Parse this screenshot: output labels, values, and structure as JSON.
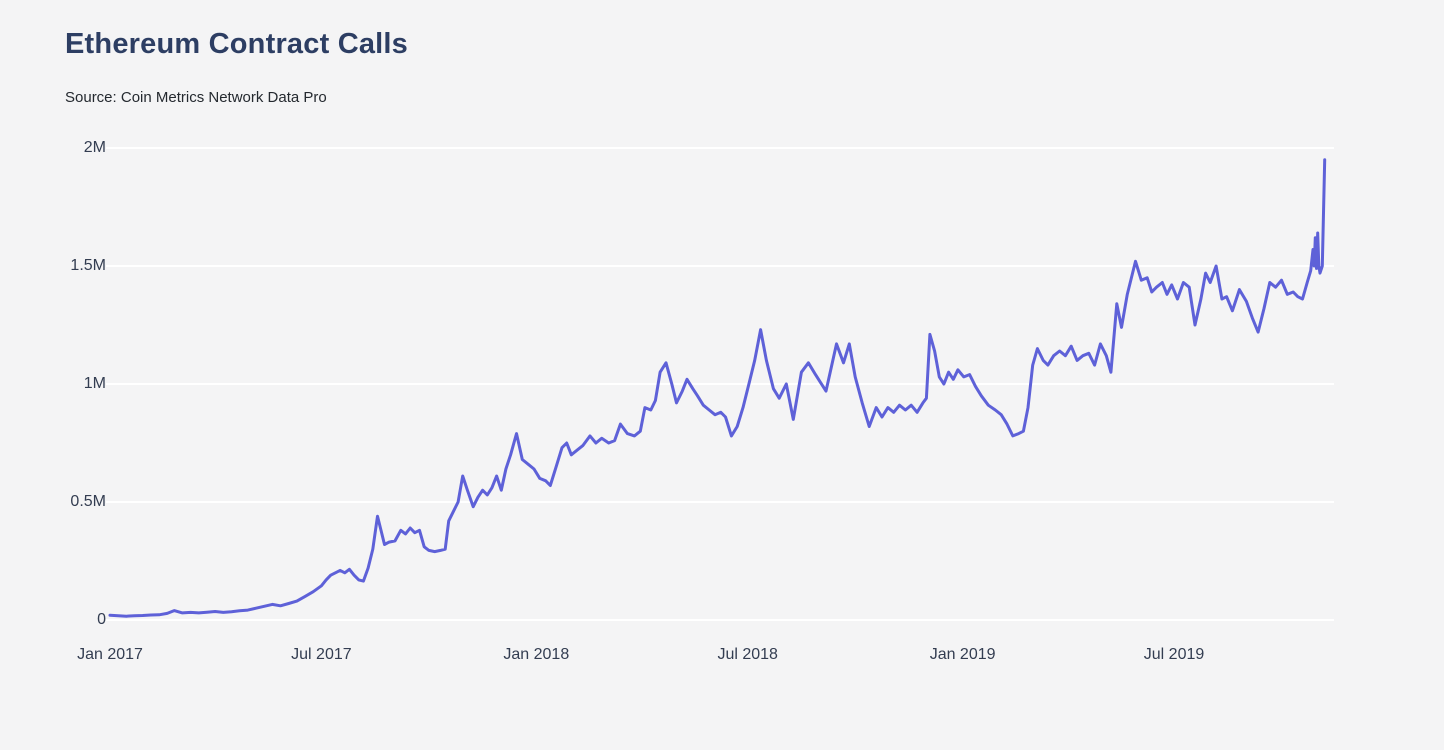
{
  "page": {
    "background": "#f4f4f5"
  },
  "header": {
    "title": "Ethereum Contract Calls",
    "source": "Source: Coin Metrics Network Data Pro"
  },
  "chart_data": {
    "type": "line",
    "title": "Ethereum Contract Calls",
    "source": "Source: Coin Metrics Network Data Pro",
    "series_name": "Ethereum contract calls",
    "unit": "calls, values in millions",
    "line_color": "#5e61d8",
    "grid_color": "#ffffff",
    "background_color": "#f4f4f5",
    "grid": true,
    "legend": false,
    "ylim": [
      0,
      2
    ],
    "x_range": [
      "2017-01-01",
      "2019-11-07"
    ],
    "y_ticks": [
      {
        "label": "0",
        "value": 0
      },
      {
        "label": "0.5M",
        "value": 0.5
      },
      {
        "label": "1M",
        "value": 1
      },
      {
        "label": "1.5M",
        "value": 1.5
      },
      {
        "label": "2M",
        "value": 2
      }
    ],
    "x_ticks": [
      {
        "label": "Jan 2017",
        "date": "2017-01-01"
      },
      {
        "label": "Jul 2017",
        "date": "2017-07-01"
      },
      {
        "label": "Jan 2018",
        "date": "2018-01-01"
      },
      {
        "label": "Jul 2018",
        "date": "2018-07-01"
      },
      {
        "label": "Jan 2019",
        "date": "2019-01-01"
      },
      {
        "label": "Jul 2019",
        "date": "2019-07-01"
      }
    ],
    "points": [
      [
        "2017-01-01",
        0.02
      ],
      [
        "2017-01-08",
        0.018
      ],
      [
        "2017-01-15",
        0.016
      ],
      [
        "2017-01-22",
        0.018
      ],
      [
        "2017-01-29",
        0.019
      ],
      [
        "2017-02-05",
        0.021
      ],
      [
        "2017-02-12",
        0.022
      ],
      [
        "2017-02-19",
        0.028
      ],
      [
        "2017-02-25",
        0.04
      ],
      [
        "2017-03-04",
        0.03
      ],
      [
        "2017-03-11",
        0.032
      ],
      [
        "2017-03-18",
        0.03
      ],
      [
        "2017-03-25",
        0.033
      ],
      [
        "2017-04-01",
        0.036
      ],
      [
        "2017-04-08",
        0.032
      ],
      [
        "2017-04-15",
        0.035
      ],
      [
        "2017-04-22",
        0.039
      ],
      [
        "2017-04-29",
        0.042
      ],
      [
        "2017-05-06",
        0.05
      ],
      [
        "2017-05-13",
        0.058
      ],
      [
        "2017-05-20",
        0.066
      ],
      [
        "2017-05-27",
        0.06
      ],
      [
        "2017-06-03",
        0.07
      ],
      [
        "2017-06-10",
        0.08
      ],
      [
        "2017-06-17",
        0.1
      ],
      [
        "2017-06-24",
        0.12
      ],
      [
        "2017-07-01",
        0.145
      ],
      [
        "2017-07-05",
        0.17
      ],
      [
        "2017-07-09",
        0.19
      ],
      [
        "2017-07-13",
        0.2
      ],
      [
        "2017-07-17",
        0.21
      ],
      [
        "2017-07-21",
        0.2
      ],
      [
        "2017-07-25",
        0.215
      ],
      [
        "2017-07-29",
        0.19
      ],
      [
        "2017-08-02",
        0.17
      ],
      [
        "2017-08-06",
        0.165
      ],
      [
        "2017-08-10",
        0.22
      ],
      [
        "2017-08-14",
        0.3
      ],
      [
        "2017-08-18",
        0.44
      ],
      [
        "2017-08-21",
        0.38
      ],
      [
        "2017-08-24",
        0.32
      ],
      [
        "2017-08-28",
        0.33
      ],
      [
        "2017-09-02",
        0.335
      ],
      [
        "2017-09-07",
        0.38
      ],
      [
        "2017-09-11",
        0.365
      ],
      [
        "2017-09-15",
        0.39
      ],
      [
        "2017-09-19",
        0.37
      ],
      [
        "2017-09-23",
        0.38
      ],
      [
        "2017-09-27",
        0.31
      ],
      [
        "2017-10-01",
        0.295
      ],
      [
        "2017-10-06",
        0.29
      ],
      [
        "2017-10-11",
        0.295
      ],
      [
        "2017-10-15",
        0.3
      ],
      [
        "2017-10-18",
        0.42
      ],
      [
        "2017-10-22",
        0.46
      ],
      [
        "2017-10-26",
        0.5
      ],
      [
        "2017-10-30",
        0.61
      ],
      [
        "2017-11-03",
        0.55
      ],
      [
        "2017-11-08",
        0.48
      ],
      [
        "2017-11-12",
        0.52
      ],
      [
        "2017-11-16",
        0.55
      ],
      [
        "2017-11-20",
        0.53
      ],
      [
        "2017-11-24",
        0.56
      ],
      [
        "2017-11-28",
        0.61
      ],
      [
        "2017-12-02",
        0.55
      ],
      [
        "2017-12-06",
        0.64
      ],
      [
        "2017-12-10",
        0.7
      ],
      [
        "2017-12-15",
        0.79
      ],
      [
        "2017-12-20",
        0.68
      ],
      [
        "2017-12-25",
        0.66
      ],
      [
        "2017-12-30",
        0.64
      ],
      [
        "2018-01-04",
        0.6
      ],
      [
        "2018-01-09",
        0.59
      ],
      [
        "2018-01-13",
        0.57
      ],
      [
        "2018-01-18",
        0.65
      ],
      [
        "2018-01-23",
        0.73
      ],
      [
        "2018-01-27",
        0.75
      ],
      [
        "2018-01-31",
        0.7
      ],
      [
        "2018-02-05",
        0.72
      ],
      [
        "2018-02-10",
        0.74
      ],
      [
        "2018-02-16",
        0.78
      ],
      [
        "2018-02-21",
        0.75
      ],
      [
        "2018-02-26",
        0.77
      ],
      [
        "2018-03-04",
        0.75
      ],
      [
        "2018-03-09",
        0.76
      ],
      [
        "2018-03-14",
        0.83
      ],
      [
        "2018-03-20",
        0.79
      ],
      [
        "2018-03-26",
        0.78
      ],
      [
        "2018-03-31",
        0.8
      ],
      [
        "2018-04-04",
        0.9
      ],
      [
        "2018-04-09",
        0.89
      ],
      [
        "2018-04-13",
        0.93
      ],
      [
        "2018-04-17",
        1.05
      ],
      [
        "2018-04-22",
        1.09
      ],
      [
        "2018-04-27",
        1.0
      ],
      [
        "2018-05-01",
        0.92
      ],
      [
        "2018-05-06",
        0.97
      ],
      [
        "2018-05-10",
        1.02
      ],
      [
        "2018-05-15",
        0.98
      ],
      [
        "2018-05-19",
        0.95
      ],
      [
        "2018-05-24",
        0.91
      ],
      [
        "2018-05-29",
        0.89
      ],
      [
        "2018-06-03",
        0.87
      ],
      [
        "2018-06-08",
        0.88
      ],
      [
        "2018-06-12",
        0.86
      ],
      [
        "2018-06-17",
        0.78
      ],
      [
        "2018-06-22",
        0.82
      ],
      [
        "2018-06-27",
        0.9
      ],
      [
        "2018-07-02",
        1.0
      ],
      [
        "2018-07-07",
        1.1
      ],
      [
        "2018-07-12",
        1.23
      ],
      [
        "2018-07-17",
        1.1
      ],
      [
        "2018-07-23",
        0.98
      ],
      [
        "2018-07-28",
        0.94
      ],
      [
        "2018-08-03",
        1.0
      ],
      [
        "2018-08-09",
        0.85
      ],
      [
        "2018-08-16",
        1.05
      ],
      [
        "2018-08-22",
        1.09
      ],
      [
        "2018-08-28",
        1.04
      ],
      [
        "2018-09-06",
        0.97
      ],
      [
        "2018-09-15",
        1.17
      ],
      [
        "2018-09-21",
        1.09
      ],
      [
        "2018-09-26",
        1.17
      ],
      [
        "2018-10-01",
        1.03
      ],
      [
        "2018-10-07",
        0.92
      ],
      [
        "2018-10-13",
        0.82
      ],
      [
        "2018-10-19",
        0.9
      ],
      [
        "2018-10-24",
        0.86
      ],
      [
        "2018-10-29",
        0.9
      ],
      [
        "2018-11-03",
        0.88
      ],
      [
        "2018-11-08",
        0.91
      ],
      [
        "2018-11-13",
        0.89
      ],
      [
        "2018-11-18",
        0.91
      ],
      [
        "2018-11-23",
        0.88
      ],
      [
        "2018-11-28",
        0.92
      ],
      [
        "2018-12-01",
        0.94
      ],
      [
        "2018-12-04",
        1.21
      ],
      [
        "2018-12-08",
        1.14
      ],
      [
        "2018-12-12",
        1.03
      ],
      [
        "2018-12-16",
        1.0
      ],
      [
        "2018-12-20",
        1.05
      ],
      [
        "2018-12-24",
        1.02
      ],
      [
        "2018-12-28",
        1.06
      ],
      [
        "2019-01-02",
        1.03
      ],
      [
        "2019-01-07",
        1.04
      ],
      [
        "2019-01-12",
        0.99
      ],
      [
        "2019-01-17",
        0.95
      ],
      [
        "2019-01-23",
        0.91
      ],
      [
        "2019-01-29",
        0.89
      ],
      [
        "2019-02-03",
        0.87
      ],
      [
        "2019-02-08",
        0.83
      ],
      [
        "2019-02-13",
        0.78
      ],
      [
        "2019-02-18",
        0.79
      ],
      [
        "2019-02-22",
        0.8
      ],
      [
        "2019-02-26",
        0.9
      ],
      [
        "2019-03-02",
        1.08
      ],
      [
        "2019-03-06",
        1.15
      ],
      [
        "2019-03-11",
        1.1
      ],
      [
        "2019-03-15",
        1.08
      ],
      [
        "2019-03-20",
        1.12
      ],
      [
        "2019-03-25",
        1.14
      ],
      [
        "2019-03-30",
        1.12
      ],
      [
        "2019-04-04",
        1.16
      ],
      [
        "2019-04-09",
        1.1
      ],
      [
        "2019-04-14",
        1.12
      ],
      [
        "2019-04-19",
        1.13
      ],
      [
        "2019-04-24",
        1.08
      ],
      [
        "2019-04-29",
        1.17
      ],
      [
        "2019-05-04",
        1.12
      ],
      [
        "2019-05-08",
        1.05
      ],
      [
        "2019-05-13",
        1.34
      ],
      [
        "2019-05-17",
        1.24
      ],
      [
        "2019-05-22",
        1.38
      ],
      [
        "2019-05-29",
        1.52
      ],
      [
        "2019-06-03",
        1.44
      ],
      [
        "2019-06-08",
        1.45
      ],
      [
        "2019-06-12",
        1.39
      ],
      [
        "2019-06-16",
        1.41
      ],
      [
        "2019-06-21",
        1.43
      ],
      [
        "2019-06-25",
        1.38
      ],
      [
        "2019-06-29",
        1.42
      ],
      [
        "2019-07-04",
        1.36
      ],
      [
        "2019-07-09",
        1.43
      ],
      [
        "2019-07-14",
        1.41
      ],
      [
        "2019-07-19",
        1.25
      ],
      [
        "2019-07-24",
        1.36
      ],
      [
        "2019-07-28",
        1.47
      ],
      [
        "2019-08-01",
        1.43
      ],
      [
        "2019-08-06",
        1.5
      ],
      [
        "2019-08-11",
        1.36
      ],
      [
        "2019-08-15",
        1.37
      ],
      [
        "2019-08-20",
        1.31
      ],
      [
        "2019-08-26",
        1.4
      ],
      [
        "2019-09-01",
        1.35
      ],
      [
        "2019-09-06",
        1.28
      ],
      [
        "2019-09-11",
        1.22
      ],
      [
        "2019-09-16",
        1.32
      ],
      [
        "2019-09-21",
        1.43
      ],
      [
        "2019-09-26",
        1.41
      ],
      [
        "2019-10-01",
        1.44
      ],
      [
        "2019-10-06",
        1.38
      ],
      [
        "2019-10-11",
        1.39
      ],
      [
        "2019-10-15",
        1.37
      ],
      [
        "2019-10-19",
        1.36
      ],
      [
        "2019-10-23",
        1.43
      ],
      [
        "2019-10-26",
        1.48
      ],
      [
        "2019-10-28",
        1.57
      ],
      [
        "2019-10-29",
        1.5
      ],
      [
        "2019-10-30",
        1.62
      ],
      [
        "2019-10-31",
        1.49
      ],
      [
        "2019-11-01",
        1.64
      ],
      [
        "2019-11-02",
        1.5
      ],
      [
        "2019-11-03",
        1.47
      ],
      [
        "2019-11-05",
        1.5
      ],
      [
        "2019-11-07",
        1.95
      ]
    ]
  }
}
